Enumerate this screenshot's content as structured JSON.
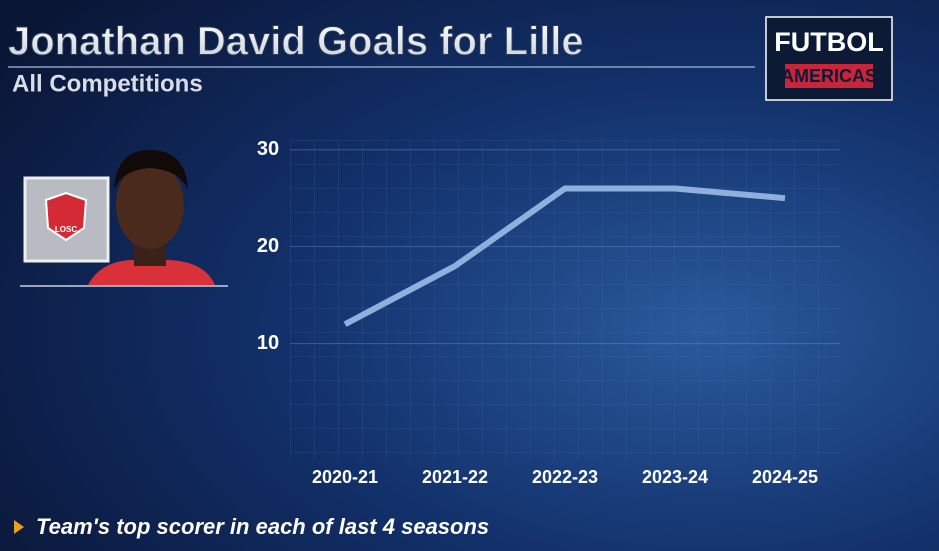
{
  "chart_data": {
    "type": "line",
    "title": "Jonathan David Goals for Lille",
    "subtitle": "All Competitions",
    "categories": [
      "2020-21",
      "2021-22",
      "2022-23",
      "2023-24",
      "2024-25"
    ],
    "values": [
      12,
      18,
      26,
      26,
      25
    ],
    "color": "#8fb0dc",
    "ylim": [
      -2,
      31
    ],
    "yticks": [
      10,
      20,
      30
    ],
    "grid": true,
    "note": "Team's top scorer in each of last 4 seasons"
  },
  "brand": {
    "line1": "FUTBOL",
    "line2": "AMERICAS"
  },
  "club_badge": "LOSC"
}
